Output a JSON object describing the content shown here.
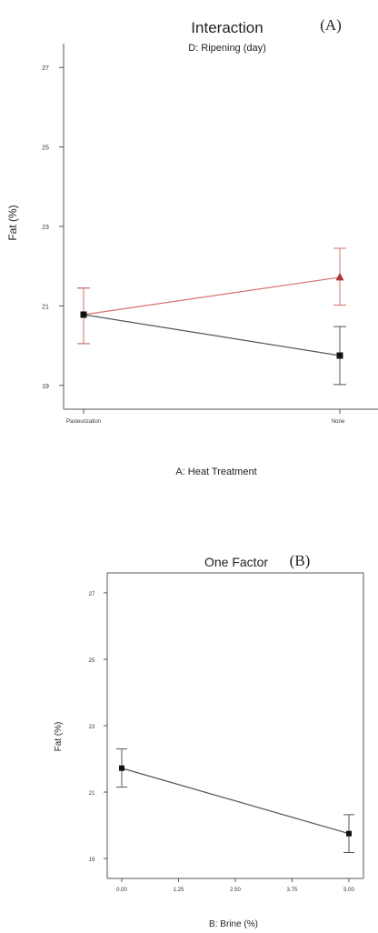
{
  "chart_data": [
    {
      "type": "line",
      "panel_label": "(A)",
      "title": "Interaction",
      "subtitle": "D: Ripening (day)",
      "xlabel": "A: Heat Treatment",
      "ylabel": "Fat (%)",
      "categories": [
        "Pasteurization",
        "None"
      ],
      "ylim": [
        18.4,
        27.6
      ],
      "yticks": [
        19,
        21,
        23,
        25,
        27
      ],
      "grid": false,
      "series": [
        {
          "color": "#555555",
          "marker": "square",
          "values": [
            20.78,
            19.75
          ],
          "error_low": [
            20.05,
            19.02
          ],
          "error_high": [
            21.45,
            20.48
          ]
        },
        {
          "color": "#d97070",
          "marker": "triangle",
          "values": [
            20.78,
            21.72
          ],
          "error_low": [
            20.05,
            21.02
          ],
          "error_high": [
            21.45,
            22.45
          ]
        }
      ]
    },
    {
      "type": "line",
      "panel_label": "(B)",
      "title": "One Factor",
      "xlabel": "B: Brine (%)",
      "ylabel": "Fat (%)",
      "x": [
        0,
        5
      ],
      "xticks": [
        "0.00",
        "1.25",
        "2.50",
        "3.75",
        "5.00"
      ],
      "xlim": [
        0,
        5
      ],
      "ylim": [
        18.4,
        27.6
      ],
      "yticks": [
        19,
        21,
        23,
        25,
        27
      ],
      "grid": false,
      "series": [
        {
          "color": "#555555",
          "marker": "square",
          "values": [
            21.72,
            19.75
          ],
          "error_low": [
            21.15,
            19.18
          ],
          "error_high": [
            22.3,
            20.32
          ]
        }
      ]
    }
  ]
}
